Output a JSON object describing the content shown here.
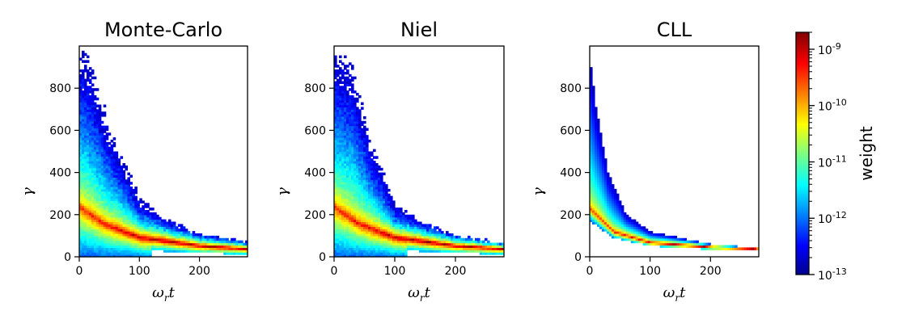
{
  "chart_data": {
    "type": "heatmap",
    "shared": {
      "xlabel": "ω_r t",
      "ylabel": "γ",
      "xlim": [
        0,
        280
      ],
      "ylim": [
        0,
        1000
      ],
      "xticks": [
        0,
        100,
        200
      ],
      "yticks": [
        0,
        200,
        400,
        600,
        800
      ],
      "xtick_labels": [
        "0",
        "100",
        "200"
      ],
      "ytick_labels": [
        "0",
        "200",
        "400",
        "600",
        "800"
      ],
      "colormap": "jet",
      "grid": false
    },
    "panels": [
      {
        "title": "Monte-Carlo",
        "model": "stochastic",
        "ridge": [
          [
            0,
            240
          ],
          [
            40,
            160
          ],
          [
            100,
            95
          ],
          [
            200,
            55
          ],
          [
            280,
            40
          ]
        ],
        "max_extent": [
          [
            0,
            1000
          ],
          [
            20,
            900
          ],
          [
            50,
            600
          ],
          [
            100,
            280
          ],
          [
            150,
            175
          ],
          [
            200,
            110
          ],
          [
            280,
            70
          ]
        ]
      },
      {
        "title": "Niel",
        "model": "stochastic",
        "ridge": [
          [
            0,
            240
          ],
          [
            40,
            160
          ],
          [
            100,
            95
          ],
          [
            200,
            55
          ],
          [
            280,
            40
          ]
        ],
        "max_extent": [
          [
            0,
            1000
          ],
          [
            30,
            900
          ],
          [
            60,
            550
          ],
          [
            100,
            250
          ],
          [
            150,
            165
          ],
          [
            200,
            105
          ],
          [
            280,
            65
          ]
        ]
      },
      {
        "title": "CLL",
        "model": "deterministic",
        "ridge": [
          [
            0,
            230
          ],
          [
            40,
            120
          ],
          [
            100,
            70
          ],
          [
            200,
            48
          ],
          [
            280,
            38
          ]
        ],
        "max_extent": [
          [
            0,
            1000
          ],
          [
            10,
            750
          ],
          [
            30,
            420
          ],
          [
            60,
            210
          ],
          [
            100,
            120
          ],
          [
            200,
            60
          ],
          [
            280,
            42
          ]
        ]
      }
    ],
    "colorbar": {
      "label": "weight",
      "scale": "log",
      "range": [
        1e-13,
        2e-09
      ],
      "tick_labels": [
        {
          "value": 1e-09,
          "label": "10-9"
        },
        {
          "value": 1e-10,
          "label": "10-10"
        },
        {
          "value": 1e-11,
          "label": "10-11"
        },
        {
          "value": 1e-12,
          "label": "10-12"
        },
        {
          "value": 1e-13,
          "label": "10-13"
        }
      ]
    }
  }
}
